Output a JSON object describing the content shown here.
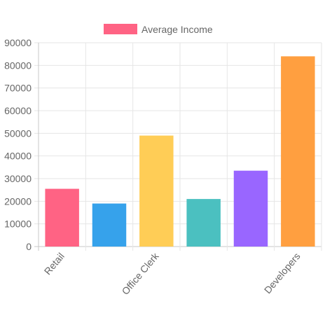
{
  "chart_data": {
    "type": "bar",
    "categories": [
      "Retail",
      "",
      "Office Clerk",
      "",
      "",
      "Developers"
    ],
    "series": [
      {
        "name": "Average Income",
        "values": [
          25500,
          19000,
          49000,
          21000,
          33500,
          84000
        ],
        "colors": [
          "#ff6384",
          "#36a2eb",
          "#ffcd56",
          "#4bc0c0",
          "#9966ff",
          "#ff9f40"
        ],
        "legend_color": "#ff6384"
      }
    ],
    "y_ticks": [
      "0",
      "10000",
      "20000",
      "30000",
      "40000",
      "50000",
      "60000",
      "70000",
      "80000",
      "90000"
    ],
    "ylim": [
      0,
      90000
    ],
    "grid": true,
    "legend_position": "top",
    "title": "",
    "xlabel": "",
    "ylabel": ""
  }
}
